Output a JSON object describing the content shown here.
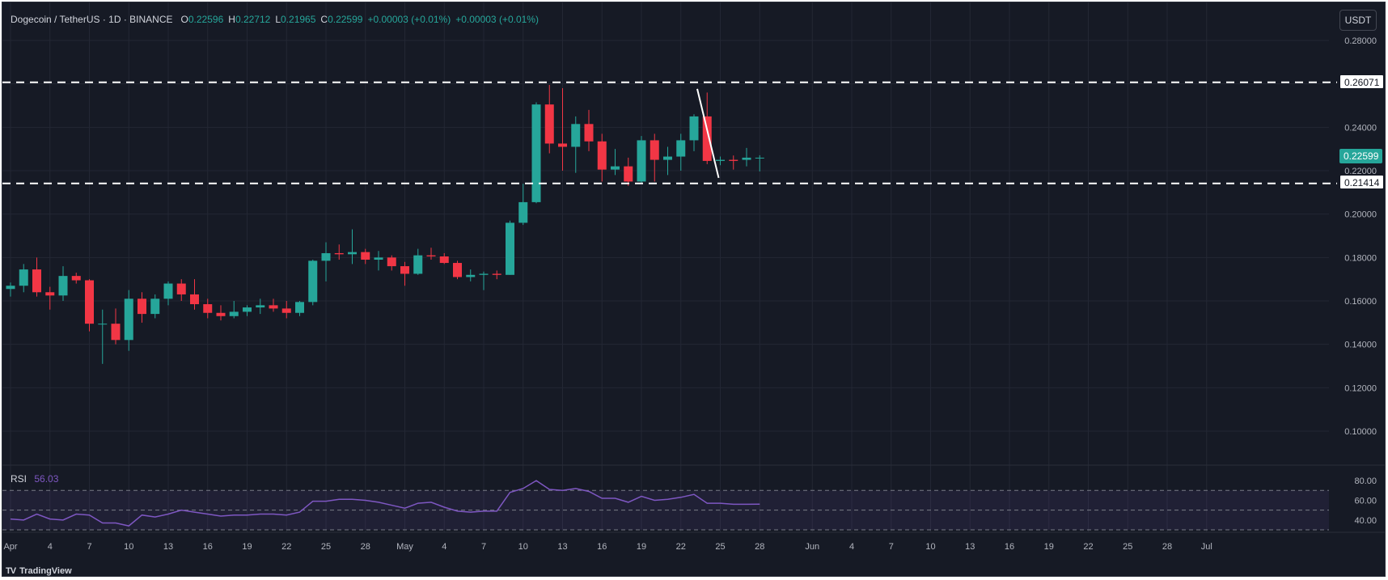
{
  "header": {
    "symbol": "Dogecoin / TetherUS · 1D · BINANCE",
    "open_label": "O",
    "open": "0.22596",
    "high_label": "H",
    "high": "0.22712",
    "low_label": "L",
    "low": "0.21965",
    "close_label": "C",
    "close": "0.22599",
    "change": "+0.00003 (+0.01%)",
    "change2": "+0.00003 (+0.01%)"
  },
  "currency_button": "USDT",
  "colors": {
    "up": "#26a69a",
    "down": "#f23645",
    "rsi": "#7e57c2",
    "background": "#161a25"
  },
  "levels": {
    "resistance": "0.26071",
    "support": "0.21414",
    "last_price": "0.22599"
  },
  "rsi": {
    "label": "RSI",
    "value": "56.03"
  },
  "brand": {
    "logo": "TV",
    "name": "TradingView"
  },
  "chart_data": [
    {
      "type": "candlestick",
      "symbol": "DOGE/USDT",
      "ylim": [
        0.09,
        0.285
      ],
      "y_ticks": [
        "0.28000",
        "0.26000",
        "0.24000",
        "0.22000",
        "0.20000",
        "0.18000",
        "0.16000",
        "0.14000",
        "0.12000",
        "0.10000"
      ],
      "x_ticks": [
        "Apr",
        "4",
        "7",
        "10",
        "13",
        "16",
        "19",
        "22",
        "25",
        "28",
        "May",
        "4",
        "7",
        "10",
        "13",
        "16",
        "19",
        "22",
        "25",
        "28",
        "Jun",
        "4",
        "7",
        "10",
        "13",
        "16",
        "19",
        "22",
        "25",
        "28",
        "Jul"
      ],
      "x_tick_dates": [
        "2024-04-01",
        "2024-04-04",
        "2024-04-07",
        "2024-04-10",
        "2024-04-13",
        "2024-04-16",
        "2024-04-19",
        "2024-04-22",
        "2024-04-25",
        "2024-04-28",
        "2024-05-01",
        "2024-05-04",
        "2024-05-07",
        "2024-05-10",
        "2024-05-13",
        "2024-05-16",
        "2024-05-19",
        "2024-05-22",
        "2024-05-25",
        "2024-05-28",
        "2024-06-01",
        "2024-06-04",
        "2024-06-07",
        "2024-06-10",
        "2024-06-13",
        "2024-06-16",
        "2024-06-19",
        "2024-06-22",
        "2024-06-25",
        "2024-06-28",
        "2024-07-01"
      ],
      "horizontal_lines": [
        0.26071,
        0.21414
      ],
      "trendline": [
        {
          "date": "2024-05-23",
          "price": 0.2577
        },
        {
          "date": "2024-05-25",
          "price": 0.2167
        }
      ],
      "candles": [
        {
          "date": "2024-04-01",
          "o": 0.1655,
          "h": 0.1685,
          "l": 0.162,
          "c": 0.167
        },
        {
          "date": "2024-04-02",
          "o": 0.167,
          "h": 0.177,
          "l": 0.164,
          "c": 0.1745
        },
        {
          "date": "2024-04-03",
          "o": 0.1745,
          "h": 0.18,
          "l": 0.162,
          "c": 0.164
        },
        {
          "date": "2024-04-04",
          "o": 0.164,
          "h": 0.1665,
          "l": 0.156,
          "c": 0.1625
        },
        {
          "date": "2024-04-05",
          "o": 0.1625,
          "h": 0.176,
          "l": 0.16,
          "c": 0.1715
        },
        {
          "date": "2024-04-06",
          "o": 0.1715,
          "h": 0.173,
          "l": 0.168,
          "c": 0.1695
        },
        {
          "date": "2024-04-07",
          "o": 0.1695,
          "h": 0.17,
          "l": 0.146,
          "c": 0.1495
        },
        {
          "date": "2024-04-08",
          "o": 0.1495,
          "h": 0.156,
          "l": 0.131,
          "c": 0.1495
        },
        {
          "date": "2024-04-09",
          "o": 0.1495,
          "h": 0.1565,
          "l": 0.14,
          "c": 0.142
        },
        {
          "date": "2024-04-10",
          "o": 0.142,
          "h": 0.165,
          "l": 0.137,
          "c": 0.161
        },
        {
          "date": "2024-04-11",
          "o": 0.161,
          "h": 0.164,
          "l": 0.15,
          "c": 0.154
        },
        {
          "date": "2024-04-12",
          "o": 0.154,
          "h": 0.163,
          "l": 0.152,
          "c": 0.161
        },
        {
          "date": "2024-04-13",
          "o": 0.161,
          "h": 0.169,
          "l": 0.158,
          "c": 0.168
        },
        {
          "date": "2024-04-14",
          "o": 0.168,
          "h": 0.17,
          "l": 0.16,
          "c": 0.163
        },
        {
          "date": "2024-04-15",
          "o": 0.163,
          "h": 0.17,
          "l": 0.156,
          "c": 0.1585
        },
        {
          "date": "2024-04-16",
          "o": 0.1585,
          "h": 0.161,
          "l": 0.152,
          "c": 0.1545
        },
        {
          "date": "2024-04-17",
          "o": 0.1545,
          "h": 0.158,
          "l": 0.151,
          "c": 0.153
        },
        {
          "date": "2024-04-18",
          "o": 0.153,
          "h": 0.16,
          "l": 0.152,
          "c": 0.155
        },
        {
          "date": "2024-04-19",
          "o": 0.155,
          "h": 0.158,
          "l": 0.153,
          "c": 0.157
        },
        {
          "date": "2024-04-20",
          "o": 0.157,
          "h": 0.161,
          "l": 0.154,
          "c": 0.158
        },
        {
          "date": "2024-04-21",
          "o": 0.158,
          "h": 0.161,
          "l": 0.155,
          "c": 0.1565
        },
        {
          "date": "2024-04-22",
          "o": 0.1565,
          "h": 0.16,
          "l": 0.152,
          "c": 0.1545
        },
        {
          "date": "2024-04-23",
          "o": 0.1545,
          "h": 0.16,
          "l": 0.153,
          "c": 0.1595
        },
        {
          "date": "2024-04-24",
          "o": 0.1595,
          "h": 0.179,
          "l": 0.158,
          "c": 0.1785
        },
        {
          "date": "2024-04-25",
          "o": 0.1785,
          "h": 0.187,
          "l": 0.169,
          "c": 0.182
        },
        {
          "date": "2024-04-26",
          "o": 0.182,
          "h": 0.186,
          "l": 0.179,
          "c": 0.1815
        },
        {
          "date": "2024-04-27",
          "o": 0.1815,
          "h": 0.193,
          "l": 0.177,
          "c": 0.1825
        },
        {
          "date": "2024-04-28",
          "o": 0.1825,
          "h": 0.184,
          "l": 0.177,
          "c": 0.179
        },
        {
          "date": "2024-04-29",
          "o": 0.179,
          "h": 0.183,
          "l": 0.174,
          "c": 0.18
        },
        {
          "date": "2024-04-30",
          "o": 0.18,
          "h": 0.181,
          "l": 0.174,
          "c": 0.176
        },
        {
          "date": "2024-05-01",
          "o": 0.176,
          "h": 0.178,
          "l": 0.167,
          "c": 0.1725
        },
        {
          "date": "2024-05-02",
          "o": 0.1725,
          "h": 0.184,
          "l": 0.172,
          "c": 0.181
        },
        {
          "date": "2024-05-03",
          "o": 0.181,
          "h": 0.1845,
          "l": 0.179,
          "c": 0.1805
        },
        {
          "date": "2024-05-04",
          "o": 0.1805,
          "h": 0.182,
          "l": 0.177,
          "c": 0.1775
        },
        {
          "date": "2024-05-05",
          "o": 0.1775,
          "h": 0.1785,
          "l": 0.17,
          "c": 0.171
        },
        {
          "date": "2024-05-06",
          "o": 0.171,
          "h": 0.1745,
          "l": 0.169,
          "c": 0.172
        },
        {
          "date": "2024-05-07",
          "o": 0.172,
          "h": 0.1735,
          "l": 0.165,
          "c": 0.1725
        },
        {
          "date": "2024-05-08",
          "o": 0.1725,
          "h": 0.174,
          "l": 0.17,
          "c": 0.172
        },
        {
          "date": "2024-05-09",
          "o": 0.172,
          "h": 0.197,
          "l": 0.172,
          "c": 0.196
        },
        {
          "date": "2024-05-10",
          "o": 0.196,
          "h": 0.214,
          "l": 0.195,
          "c": 0.2055
        },
        {
          "date": "2024-05-11",
          "o": 0.2055,
          "h": 0.2515,
          "l": 0.205,
          "c": 0.2505
        },
        {
          "date": "2024-05-12",
          "o": 0.2505,
          "h": 0.2595,
          "l": 0.228,
          "c": 0.2325
        },
        {
          "date": "2024-05-13",
          "o": 0.2325,
          "h": 0.258,
          "l": 0.22,
          "c": 0.231
        },
        {
          "date": "2024-05-14",
          "o": 0.231,
          "h": 0.245,
          "l": 0.219,
          "c": 0.2415
        },
        {
          "date": "2024-05-15",
          "o": 0.2415,
          "h": 0.248,
          "l": 0.229,
          "c": 0.2335
        },
        {
          "date": "2024-05-16",
          "o": 0.2335,
          "h": 0.237,
          "l": 0.215,
          "c": 0.2205
        },
        {
          "date": "2024-05-17",
          "o": 0.2205,
          "h": 0.23,
          "l": 0.218,
          "c": 0.222
        },
        {
          "date": "2024-05-18",
          "o": 0.222,
          "h": 0.226,
          "l": 0.213,
          "c": 0.215
        },
        {
          "date": "2024-05-19",
          "o": 0.215,
          "h": 0.236,
          "l": 0.214,
          "c": 0.234
        },
        {
          "date": "2024-05-20",
          "o": 0.234,
          "h": 0.237,
          "l": 0.215,
          "c": 0.225
        },
        {
          "date": "2024-05-21",
          "o": 0.225,
          "h": 0.231,
          "l": 0.218,
          "c": 0.2265
        },
        {
          "date": "2024-05-22",
          "o": 0.2265,
          "h": 0.237,
          "l": 0.22,
          "c": 0.234
        },
        {
          "date": "2024-05-23",
          "o": 0.234,
          "h": 0.246,
          "l": 0.229,
          "c": 0.245
        },
        {
          "date": "2024-05-24",
          "o": 0.245,
          "h": 0.256,
          "l": 0.223,
          "c": 0.2245
        },
        {
          "date": "2024-05-25",
          "o": 0.2245,
          "h": 0.2265,
          "l": 0.2225,
          "c": 0.225
        },
        {
          "date": "2024-05-26",
          "o": 0.225,
          "h": 0.227,
          "l": 0.2205,
          "c": 0.2245
        },
        {
          "date": "2024-05-27",
          "o": 0.225,
          "h": 0.2305,
          "l": 0.222,
          "c": 0.226
        },
        {
          "date": "2024-05-28",
          "o": 0.22596,
          "h": 0.22712,
          "l": 0.21965,
          "c": 0.22599
        }
      ]
    },
    {
      "type": "line",
      "name": "RSI",
      "ylim": [
        30,
        85
      ],
      "y_ticks": [
        "80.00",
        "60.00",
        "40.00"
      ],
      "reference_lines": [
        70,
        50,
        30
      ],
      "values": [
        41,
        40,
        46,
        41,
        40,
        46,
        45,
        37,
        37,
        34,
        45,
        43,
        46,
        50,
        48,
        46,
        44,
        45,
        45,
        46,
        46,
        45,
        48,
        59,
        59,
        61,
        61,
        60,
        58,
        55,
        52,
        57,
        58,
        53,
        49,
        48,
        49,
        49,
        68,
        72,
        80,
        71,
        70,
        72,
        69,
        62,
        62,
        58,
        64,
        60,
        61,
        63,
        66,
        57,
        57,
        56,
        56,
        56.03
      ]
    }
  ]
}
